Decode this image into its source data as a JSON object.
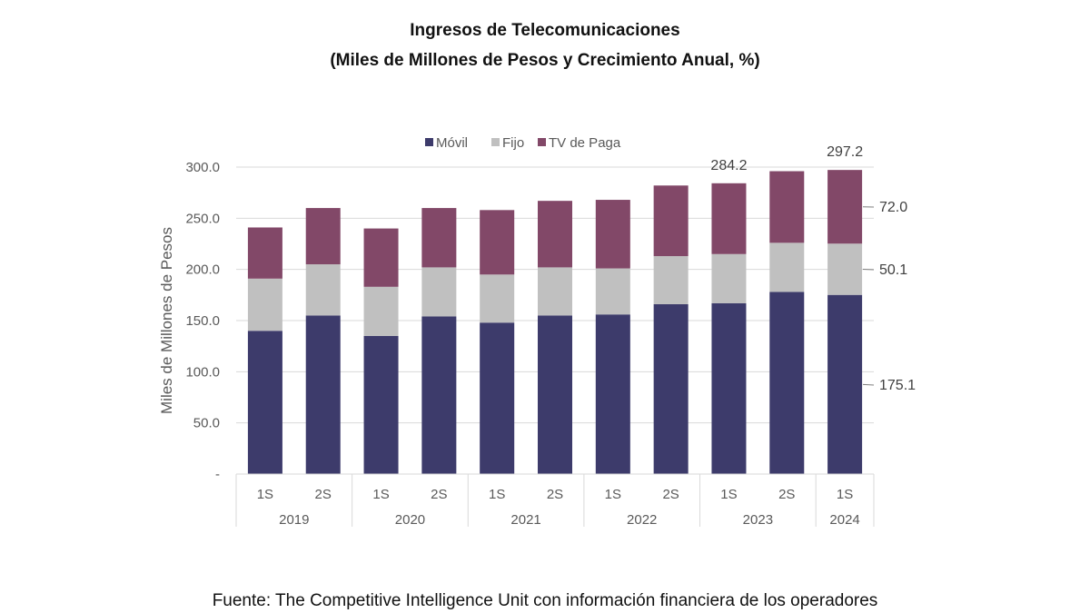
{
  "chart_data": {
    "type": "bar",
    "stacked": true,
    "title": "Ingresos de Telecomunicaciones",
    "subtitle": "(Miles de Millones de Pesos y Crecimiento Anual, %)",
    "ylabel": "Miles de Millones de Pesos",
    "ylim": [
      0,
      300
    ],
    "yticks": [
      "-",
      "50.0",
      "100.0",
      "150.0",
      "200.0",
      "250.0",
      "300.0"
    ],
    "grid": true,
    "legend_position": "top",
    "categories": [
      "1S",
      "2S",
      "1S",
      "2S",
      "1S",
      "2S",
      "1S",
      "2S",
      "1S",
      "2S",
      "1S"
    ],
    "year_groups": [
      {
        "label": "2019",
        "count": 2
      },
      {
        "label": "2020",
        "count": 2
      },
      {
        "label": "2021",
        "count": 2
      },
      {
        "label": "2022",
        "count": 2
      },
      {
        "label": "2023",
        "count": 2
      },
      {
        "label": "2024",
        "count": 1
      }
    ],
    "series": [
      {
        "name": "Móvil",
        "color": "#3d3b6b",
        "values": [
          140,
          155,
          135,
          154,
          148,
          155,
          156,
          166,
          167,
          178,
          175.1
        ]
      },
      {
        "name": "Fijo",
        "color": "#c0c0c0",
        "values": [
          51,
          50,
          48,
          48,
          47,
          47,
          45,
          47,
          48,
          48,
          50.1
        ]
      },
      {
        "name": "TV de Paga",
        "color": "#824868",
        "values": [
          50,
          55,
          57,
          58,
          63,
          65,
          67,
          69,
          69.2,
          70,
          72.0
        ]
      }
    ],
    "annotations": {
      "totals": [
        {
          "index": 8,
          "label": "284.2"
        },
        {
          "index": 10,
          "label": "297.2"
        }
      ],
      "last_segments": [
        "175.1",
        "50.1",
        "72.0"
      ]
    }
  },
  "source": "Fuente: The Competitive Intelligence Unit con información financiera de los operadores"
}
